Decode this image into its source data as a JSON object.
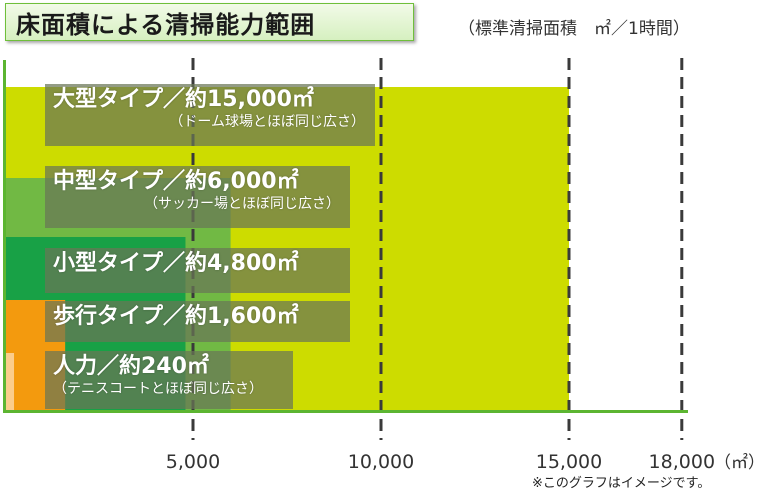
{
  "title": "床面積による清掃能力範囲",
  "unit_note": "（標準清掃面積　㎡／1時間）",
  "footnote": "※このグラフはイメージです。",
  "chart_data": {
    "type": "bar",
    "orientation": "horizontal",
    "title": "床面積による清掃能力範囲",
    "x_unit": "（㎡）",
    "x_ticks": [
      5000,
      10000,
      15000,
      18000
    ],
    "x_tick_labels": [
      "5,000",
      "10,000",
      "15,000",
      "18,000"
    ],
    "grid": "vertical dashed",
    "series": [
      {
        "main": "大型タイプ／約15,000㎡",
        "sub": "（ドーム球場とほぼ同じ広さ）",
        "value": 15000,
        "color": "#cddc00"
      },
      {
        "main": "中型タイプ／約6,000㎡",
        "sub": "（サッカー場とほぼ同じ広さ）",
        "value": 6000,
        "color": "#71b944"
      },
      {
        "main": "小型タイプ／約4,800㎡",
        "sub": "",
        "value": 4800,
        "color": "#18a146"
      },
      {
        "main": "歩行タイプ／約1,600㎡",
        "sub": "",
        "value": 1600,
        "color": "#f39a0e"
      },
      {
        "main": "人力／約240㎡",
        "sub": "（テニスコートとほぼ同じ広さ）",
        "value": 240,
        "color": "#fbcd8c"
      }
    ]
  }
}
